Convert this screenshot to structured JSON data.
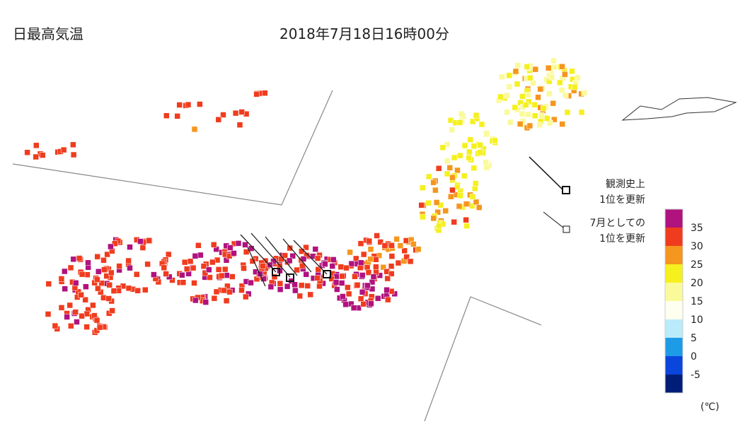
{
  "header": {
    "title": "日最高気温",
    "timestamp": "2018年7月18日16時00分"
  },
  "legend": {
    "record_all_time": "観測史上\n1位を更新",
    "record_july": "7月としての\n1位を更新"
  },
  "colorbar": {
    "ticks": [
      35,
      30,
      25,
      20,
      15,
      10,
      5,
      0,
      -5
    ],
    "colors": [
      "#b0127e",
      "#f03c1e",
      "#f5961e",
      "#f5f01e",
      "#fafa9a",
      "#fffff0",
      "#b9ebfa",
      "#1e9be6",
      "#0a46dc",
      "#001e78"
    ],
    "unit": "(℃)"
  }
}
